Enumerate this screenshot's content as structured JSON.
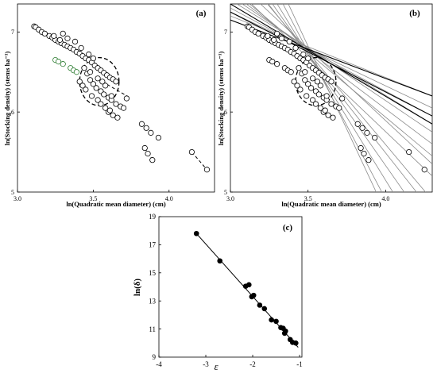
{
  "chart_data": [
    {
      "panel": "a",
      "panel_label": "(a)",
      "type": "scatter",
      "xlabel": "ln(Quadratic mean diameter) (cm)",
      "ylabel": "ln(Stocking density) (stems ha⁻¹)",
      "xlim": [
        3.0,
        4.3
      ],
      "ylim": [
        5,
        7.35
      ],
      "xticks": [
        3.0,
        3.5,
        4.0
      ],
      "xtick_labels": [
        "3.0",
        "3.5",
        "4.0"
      ],
      "yticks": [
        5,
        6,
        7
      ],
      "ytick_labels": [
        "5",
        "6",
        "7"
      ],
      "grid": false,
      "series": [
        {
          "marker": "open-circle",
          "color": "#000000",
          "points": [
            [
              3.11,
              7.07
            ],
            [
              3.12,
              7.06
            ],
            [
              3.14,
              7.03
            ],
            [
              3.16,
              7.0
            ],
            [
              3.18,
              6.98
            ],
            [
              3.21,
              6.95
            ],
            [
              3.23,
              6.93
            ],
            [
              3.25,
              6.9
            ],
            [
              3.27,
              6.88
            ],
            [
              3.29,
              6.86
            ],
            [
              3.31,
              6.84
            ],
            [
              3.33,
              6.82
            ],
            [
              3.35,
              6.8
            ],
            [
              3.37,
              6.78
            ],
            [
              3.39,
              6.75
            ],
            [
              3.41,
              6.73
            ],
            [
              3.43,
              6.7
            ],
            [
              3.45,
              6.67
            ],
            [
              3.47,
              6.65
            ],
            [
              3.49,
              6.62
            ],
            [
              3.51,
              6.58
            ],
            [
              3.53,
              6.55
            ],
            [
              3.55,
              6.52
            ],
            [
              3.57,
              6.49
            ],
            [
              3.59,
              6.46
            ],
            [
              3.61,
              6.43
            ],
            [
              3.63,
              6.41
            ],
            [
              3.65,
              6.38
            ],
            [
              3.3,
              6.98
            ],
            [
              3.33,
              6.92
            ],
            [
              3.38,
              6.88
            ],
            [
              3.42,
              6.8
            ],
            [
              3.47,
              6.72
            ],
            [
              3.5,
              6.67
            ],
            [
              3.24,
              6.95
            ],
            [
              3.28,
              6.9
            ],
            [
              3.44,
              6.55
            ],
            [
              3.46,
              6.48
            ],
            [
              3.48,
              6.4
            ],
            [
              3.5,
              6.35
            ],
            [
              3.52,
              6.3
            ],
            [
              3.55,
              6.26
            ],
            [
              3.57,
              6.22
            ],
            [
              3.6,
              6.18
            ],
            [
              3.62,
              6.15
            ],
            [
              3.65,
              6.1
            ],
            [
              3.68,
              6.07
            ],
            [
              3.7,
              6.05
            ],
            [
              3.72,
              6.17
            ],
            [
              3.48,
              6.5
            ],
            [
              3.53,
              6.42
            ],
            [
              3.56,
              6.38
            ],
            [
              3.58,
              6.33
            ],
            [
              3.62,
              6.2
            ],
            [
              3.41,
              6.38
            ],
            [
              3.43,
              6.33
            ],
            [
              3.45,
              6.28
            ],
            [
              3.49,
              6.2
            ],
            [
              3.53,
              6.15
            ],
            [
              3.55,
              6.1
            ],
            [
              3.6,
              6.0
            ],
            [
              3.63,
              5.96
            ],
            [
              3.66,
              5.93
            ],
            [
              3.58,
              6.05
            ],
            [
              3.61,
              6.02
            ],
            [
              3.82,
              5.85
            ],
            [
              3.85,
              5.8
            ],
            [
              3.88,
              5.74
            ],
            [
              3.93,
              5.68
            ],
            [
              3.84,
              5.55
            ],
            [
              3.86,
              5.48
            ],
            [
              3.89,
              5.4
            ],
            [
              4.15,
              5.5
            ],
            [
              4.25,
              5.28
            ]
          ]
        },
        {
          "marker": "open-circle",
          "color": "#2e7d32",
          "points": [
            [
              3.25,
              6.65
            ],
            [
              3.27,
              6.63
            ],
            [
              3.3,
              6.6
            ],
            [
              3.35,
              6.55
            ],
            [
              3.37,
              6.52
            ],
            [
              3.39,
              6.5
            ]
          ]
        }
      ],
      "dashed_segments": [
        [
          [
            3.56,
            6.38
          ],
          [
            3.75,
            6.17
          ]
        ],
        [
          [
            3.84,
            5.55
          ],
          [
            3.89,
            5.4
          ]
        ],
        [
          [
            4.15,
            5.5
          ],
          [
            4.25,
            5.28
          ]
        ]
      ],
      "dashed_ellipse": {
        "cx": 3.54,
        "cy": 6.38,
        "rx": 0.13,
        "ry": 0.3
      }
    },
    {
      "panel": "b",
      "panel_label": "(b)",
      "type": "scatter",
      "xlabel": "ln(Quadratic mean diameter) (cm)",
      "ylabel": "ln(Stocking density) (stems ha⁻¹)",
      "xlim": [
        3.0,
        4.3
      ],
      "ylim": [
        5,
        7.35
      ],
      "xticks": [
        3.0,
        3.5,
        4.0
      ],
      "xtick_labels": [
        "3.0",
        "3.5",
        "4.0"
      ],
      "yticks": [
        5,
        6,
        7
      ],
      "ytick_labels": [
        "5",
        "6",
        "7"
      ],
      "grid": false,
      "fitted_lines_grey": [
        [
          [
            3.0,
            7.5
          ],
          [
            4.3,
            5.6
          ]
        ],
        [
          [
            3.0,
            7.9
          ],
          [
            4.3,
            4.9
          ]
        ],
        [
          [
            3.0,
            7.3
          ],
          [
            4.3,
            5.95
          ]
        ],
        [
          [
            3.0,
            8.1
          ],
          [
            4.3,
            4.5
          ]
        ],
        [
          [
            3.0,
            7.6
          ],
          [
            4.3,
            5.2
          ]
        ],
        [
          [
            3.0,
            7.7
          ],
          [
            4.3,
            5.35
          ]
        ],
        [
          [
            3.0,
            8.3
          ],
          [
            4.3,
            4.2
          ]
        ],
        [
          [
            3.0,
            7.25
          ],
          [
            4.3,
            6.05
          ]
        ],
        [
          [
            3.0,
            8.6
          ],
          [
            4.3,
            3.8
          ]
        ],
        [
          [
            3.0,
            7.45
          ],
          [
            4.3,
            5.75
          ]
        ],
        [
          [
            3.0,
            7.95
          ],
          [
            4.3,
            4.75
          ]
        ],
        [
          [
            3.0,
            7.2
          ],
          [
            4.3,
            6.2
          ]
        ],
        [
          [
            3.0,
            8.9
          ],
          [
            4.3,
            3.5
          ]
        ],
        [
          [
            3.0,
            7.55
          ],
          [
            4.3,
            5.45
          ]
        ],
        [
          [
            3.0,
            7.4
          ],
          [
            4.3,
            5.85
          ]
        ]
      ],
      "fitted_lines_black": [
        [
          [
            3.0,
            7.35
          ],
          [
            4.3,
            5.85
          ]
        ],
        [
          [
            3.0,
            7.15
          ],
          [
            4.3,
            6.2
          ]
        ],
        [
          [
            3.0,
            7.25
          ],
          [
            4.3,
            5.95
          ]
        ]
      ],
      "series": [
        {
          "marker": "open-circle",
          "color": "#000000",
          "points": [
            [
              3.11,
              7.07
            ],
            [
              3.12,
              7.06
            ],
            [
              3.14,
              7.03
            ],
            [
              3.16,
              7.0
            ],
            [
              3.18,
              6.98
            ],
            [
              3.21,
              6.95
            ],
            [
              3.23,
              6.93
            ],
            [
              3.25,
              6.9
            ],
            [
              3.27,
              6.88
            ],
            [
              3.29,
              6.86
            ],
            [
              3.31,
              6.84
            ],
            [
              3.33,
              6.82
            ],
            [
              3.35,
              6.8
            ],
            [
              3.37,
              6.78
            ],
            [
              3.39,
              6.75
            ],
            [
              3.41,
              6.73
            ],
            [
              3.43,
              6.7
            ],
            [
              3.45,
              6.67
            ],
            [
              3.47,
              6.65
            ],
            [
              3.49,
              6.62
            ],
            [
              3.51,
              6.58
            ],
            [
              3.53,
              6.55
            ],
            [
              3.55,
              6.52
            ],
            [
              3.57,
              6.49
            ],
            [
              3.59,
              6.46
            ],
            [
              3.61,
              6.43
            ],
            [
              3.63,
              6.41
            ],
            [
              3.65,
              6.38
            ],
            [
              3.3,
              6.98
            ],
            [
              3.33,
              6.92
            ],
            [
              3.38,
              6.88
            ],
            [
              3.42,
              6.8
            ],
            [
              3.47,
              6.72
            ],
            [
              3.5,
              6.67
            ],
            [
              3.24,
              6.95
            ],
            [
              3.28,
              6.9
            ],
            [
              3.44,
              6.55
            ],
            [
              3.46,
              6.48
            ],
            [
              3.48,
              6.4
            ],
            [
              3.5,
              6.35
            ],
            [
              3.52,
              6.3
            ],
            [
              3.55,
              6.26
            ],
            [
              3.57,
              6.22
            ],
            [
              3.6,
              6.18
            ],
            [
              3.62,
              6.15
            ],
            [
              3.65,
              6.1
            ],
            [
              3.68,
              6.07
            ],
            [
              3.7,
              6.05
            ],
            [
              3.72,
              6.17
            ],
            [
              3.48,
              6.5
            ],
            [
              3.53,
              6.42
            ],
            [
              3.56,
              6.38
            ],
            [
              3.58,
              6.33
            ],
            [
              3.62,
              6.2
            ],
            [
              3.41,
              6.38
            ],
            [
              3.43,
              6.33
            ],
            [
              3.45,
              6.28
            ],
            [
              3.49,
              6.2
            ],
            [
              3.53,
              6.15
            ],
            [
              3.55,
              6.1
            ],
            [
              3.6,
              6.0
            ],
            [
              3.63,
              5.96
            ],
            [
              3.66,
              5.93
            ],
            [
              3.58,
              6.05
            ],
            [
              3.61,
              6.02
            ],
            [
              3.82,
              5.85
            ],
            [
              3.85,
              5.8
            ],
            [
              3.88,
              5.74
            ],
            [
              3.93,
              5.68
            ],
            [
              3.84,
              5.55
            ],
            [
              3.86,
              5.48
            ],
            [
              3.89,
              5.4
            ],
            [
              4.15,
              5.5
            ],
            [
              4.25,
              5.28
            ],
            [
              3.25,
              6.65
            ],
            [
              3.27,
              6.63
            ],
            [
              3.3,
              6.6
            ],
            [
              3.35,
              6.55
            ],
            [
              3.37,
              6.52
            ],
            [
              3.39,
              6.5
            ]
          ]
        }
      ],
      "dashed_ellipse": {
        "cx": 3.55,
        "cy": 6.38,
        "rx": 0.13,
        "ry": 0.3
      }
    },
    {
      "panel": "c",
      "panel_label": "(c)",
      "type": "scatter",
      "xlabel": "ε",
      "ylabel": "ln(δ)",
      "xlim": [
        -4,
        -0.95
      ],
      "ylim": [
        9,
        19
      ],
      "xticks": [
        -4,
        -3,
        -2,
        -1
      ],
      "xtick_labels": [
        "-4",
        "-3",
        "-2",
        "-1"
      ],
      "yticks": [
        9,
        11,
        13,
        15,
        17,
        19
      ],
      "ytick_labels": [
        "9",
        "11",
        "13",
        "15",
        "17",
        "19"
      ],
      "grid": false,
      "series": [
        {
          "marker": "filled-circle",
          "color": "#000000",
          "points": [
            [
              -3.2,
              17.8
            ],
            [
              -2.7,
              15.85
            ],
            [
              -2.15,
              14.05
            ],
            [
              -2.08,
              14.15
            ],
            [
              -2.02,
              13.3
            ],
            [
              -1.98,
              13.4
            ],
            [
              -1.85,
              12.7
            ],
            [
              -1.75,
              12.45
            ],
            [
              -1.6,
              11.65
            ],
            [
              -1.5,
              11.55
            ],
            [
              -1.4,
              11.1
            ],
            [
              -1.35,
              11.05
            ],
            [
              -1.32,
              10.7
            ],
            [
              -1.3,
              10.85
            ],
            [
              -1.2,
              10.25
            ],
            [
              -1.15,
              10.05
            ],
            [
              -1.08,
              10.0
            ]
          ]
        }
      ],
      "fitted_line": [
        [
          -3.2,
          17.8
        ],
        [
          -1.03,
          9.7
        ]
      ]
    }
  ]
}
